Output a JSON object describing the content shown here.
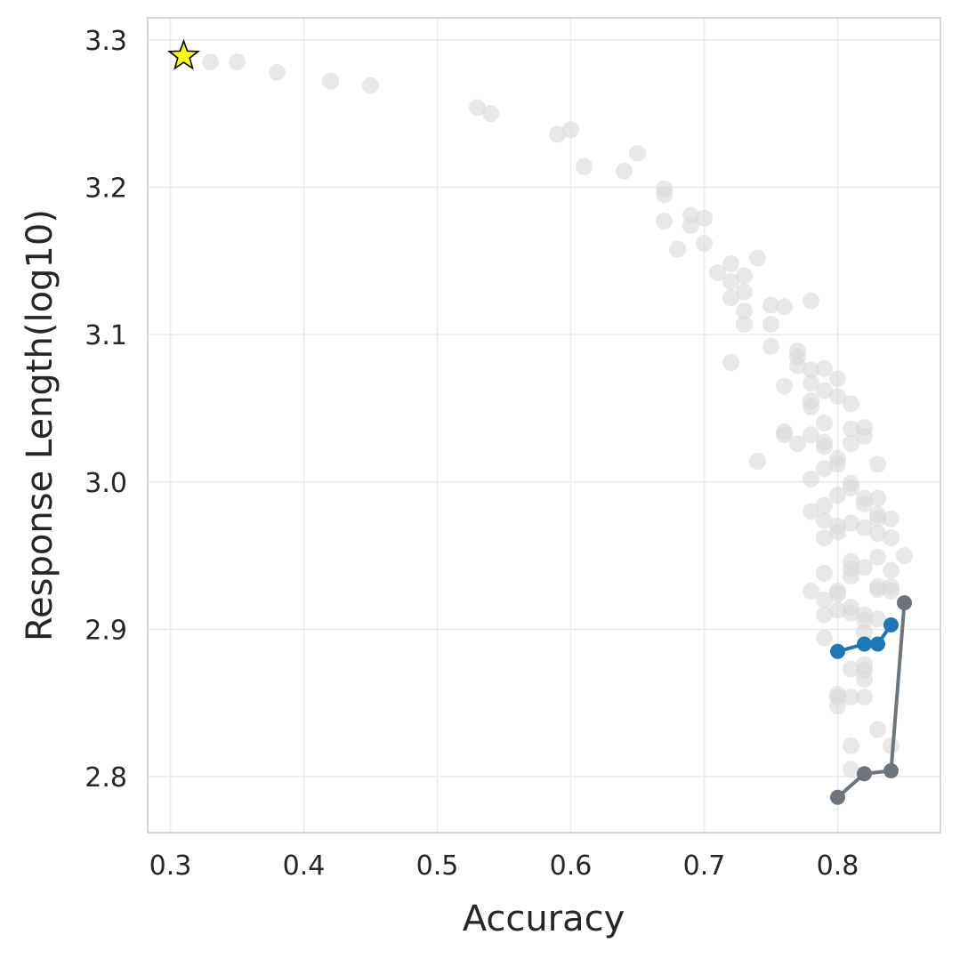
{
  "chart_data": {
    "type": "scatter",
    "xlabel": "Accuracy",
    "ylabel": "Response Length(log10)",
    "xlim": [
      0.283,
      0.877
    ],
    "ylim": [
      2.762,
      3.315
    ],
    "xticks": [
      0.3,
      0.4,
      0.5,
      0.6,
      0.7,
      0.8
    ],
    "xtick_labels": [
      "0.3",
      "0.4",
      "0.5",
      "0.6",
      "0.7",
      "0.8"
    ],
    "yticks": [
      2.8,
      2.9,
      3.0,
      3.1,
      3.2,
      3.3
    ],
    "ytick_labels": [
      "2.8",
      "2.9",
      "3.0",
      "3.1",
      "3.2",
      "3.3"
    ],
    "grid": true,
    "background_points": {
      "color": "#d9d9d9",
      "points": [
        [
          0.33,
          3.285
        ],
        [
          0.35,
          3.285
        ],
        [
          0.38,
          3.278
        ],
        [
          0.42,
          3.272
        ],
        [
          0.45,
          3.269
        ],
        [
          0.53,
          3.254
        ],
        [
          0.54,
          3.25
        ],
        [
          0.59,
          3.236
        ],
        [
          0.6,
          3.239
        ],
        [
          0.61,
          3.214
        ],
        [
          0.64,
          3.211
        ],
        [
          0.65,
          3.223
        ],
        [
          0.67,
          3.199
        ],
        [
          0.67,
          3.195
        ],
        [
          0.67,
          3.177
        ],
        [
          0.68,
          3.158
        ],
        [
          0.69,
          3.181
        ],
        [
          0.69,
          3.174
        ],
        [
          0.7,
          3.179
        ],
        [
          0.7,
          3.162
        ],
        [
          0.71,
          3.142
        ],
        [
          0.72,
          3.148
        ],
        [
          0.72,
          3.136
        ],
        [
          0.72,
          3.125
        ],
        [
          0.72,
          3.081
        ],
        [
          0.73,
          3.14
        ],
        [
          0.73,
          3.129
        ],
        [
          0.73,
          3.116
        ],
        [
          0.73,
          3.107
        ],
        [
          0.74,
          3.152
        ],
        [
          0.74,
          3.014
        ],
        [
          0.75,
          3.12
        ],
        [
          0.75,
          3.107
        ],
        [
          0.75,
          3.092
        ],
        [
          0.76,
          3.119
        ],
        [
          0.76,
          3.065
        ],
        [
          0.76,
          3.034
        ],
        [
          0.76,
          3.032
        ],
        [
          0.77,
          3.089
        ],
        [
          0.77,
          3.085
        ],
        [
          0.77,
          3.079
        ],
        [
          0.77,
          3.026
        ],
        [
          0.78,
          3.123
        ],
        [
          0.78,
          3.076
        ],
        [
          0.78,
          3.067
        ],
        [
          0.78,
          3.055
        ],
        [
          0.78,
          3.051
        ],
        [
          0.78,
          3.032
        ],
        [
          0.78,
          3.002
        ],
        [
          0.78,
          2.98
        ],
        [
          0.78,
          2.926
        ],
        [
          0.79,
          3.077
        ],
        [
          0.79,
          3.062
        ],
        [
          0.79,
          3.04
        ],
        [
          0.79,
          3.027
        ],
        [
          0.79,
          3.024
        ],
        [
          0.79,
          3.009
        ],
        [
          0.79,
          2.984
        ],
        [
          0.79,
          2.974
        ],
        [
          0.79,
          2.962
        ],
        [
          0.79,
          2.938
        ],
        [
          0.79,
          2.92
        ],
        [
          0.79,
          2.91
        ],
        [
          0.79,
          2.894
        ],
        [
          0.8,
          3.07
        ],
        [
          0.8,
          3.058
        ],
        [
          0.8,
          3.016
        ],
        [
          0.8,
          3.012
        ],
        [
          0.8,
          2.991
        ],
        [
          0.8,
          2.97
        ],
        [
          0.8,
          2.966
        ],
        [
          0.8,
          2.926
        ],
        [
          0.8,
          2.924
        ],
        [
          0.8,
          2.913
        ],
        [
          0.8,
          2.856
        ],
        [
          0.8,
          2.854
        ],
        [
          0.8,
          2.848
        ],
        [
          0.81,
          3.053
        ],
        [
          0.81,
          3.036
        ],
        [
          0.81,
          3.026
        ],
        [
          0.81,
          2.999
        ],
        [
          0.81,
          2.996
        ],
        [
          0.81,
          2.972
        ],
        [
          0.81,
          2.946
        ],
        [
          0.81,
          2.941
        ],
        [
          0.81,
          2.936
        ],
        [
          0.81,
          2.915
        ],
        [
          0.81,
          2.911
        ],
        [
          0.81,
          2.873
        ],
        [
          0.81,
          2.854
        ],
        [
          0.81,
          2.821
        ],
        [
          0.81,
          2.805
        ],
        [
          0.82,
          3.037
        ],
        [
          0.82,
          3.031
        ],
        [
          0.82,
          2.989
        ],
        [
          0.82,
          2.985
        ],
        [
          0.82,
          2.969
        ],
        [
          0.82,
          2.942
        ],
        [
          0.82,
          2.91
        ],
        [
          0.82,
          2.906
        ],
        [
          0.82,
          2.898
        ],
        [
          0.82,
          2.876
        ],
        [
          0.82,
          2.872
        ],
        [
          0.82,
          2.866
        ],
        [
          0.82,
          2.854
        ],
        [
          0.83,
          3.012
        ],
        [
          0.83,
          2.989
        ],
        [
          0.83,
          2.978
        ],
        [
          0.83,
          2.975
        ],
        [
          0.83,
          2.965
        ],
        [
          0.83,
          2.949
        ],
        [
          0.83,
          2.929
        ],
        [
          0.83,
          2.927
        ],
        [
          0.83,
          2.907
        ],
        [
          0.83,
          2.832
        ],
        [
          0.84,
          2.975
        ],
        [
          0.84,
          2.962
        ],
        [
          0.84,
          2.94
        ],
        [
          0.84,
          2.929
        ],
        [
          0.84,
          2.926
        ],
        [
          0.84,
          2.821
        ],
        [
          0.85,
          2.95
        ]
      ]
    },
    "series": [
      {
        "color": "#1f77b4",
        "points": [
          [
            0.8,
            2.885
          ],
          [
            0.82,
            2.89
          ],
          [
            0.83,
            2.89
          ],
          [
            0.84,
            2.903
          ]
        ]
      },
      {
        "color": "#6c757d",
        "points": [
          [
            0.8,
            2.786
          ],
          [
            0.82,
            2.802
          ],
          [
            0.84,
            2.804
          ],
          [
            0.85,
            2.918
          ]
        ]
      }
    ],
    "star_marker": {
      "color": "#ffff1a",
      "point": [
        0.31,
        3.289
      ]
    }
  }
}
